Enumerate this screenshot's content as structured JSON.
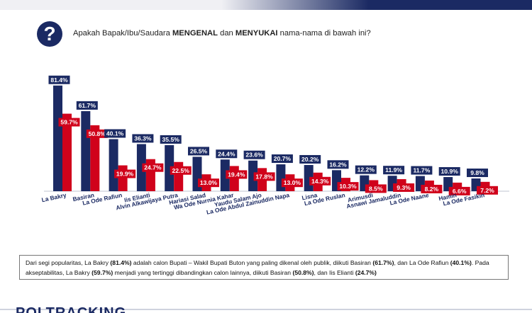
{
  "question": {
    "icon": "question-mark-icon",
    "mark": "?",
    "text_before": "Apakah Bapak/Ibu/Saudara ",
    "bold1": "MENGENAL",
    "text_mid": " dan ",
    "bold2": "MENYUKAI",
    "text_after": " nama-nama di bawah ini?"
  },
  "chart_data": {
    "type": "bar",
    "categories": [
      "La Bakry",
      "Basiran",
      "La Ode Rafiun",
      "Iis Elianti",
      "Alvin Alkawijaya Putra",
      "Hariasi Salad",
      "Wa Ode Nurnia Kahar",
      "Yaudu Salam Ajo",
      "La Ode Abdul Zainuddin Napa",
      "Lisna",
      "La Ode Ruslan",
      "Arimusdi",
      "Asnawi Jamaluddin",
      "La Ode Naane",
      "Hamin",
      "La Ode Fasikin"
    ],
    "series": [
      {
        "color": "#1b2a63",
        "values": [
          81.4,
          61.7,
          40.1,
          36.3,
          35.5,
          26.5,
          24.4,
          23.6,
          20.7,
          20.2,
          16.2,
          12.2,
          11.9,
          11.7,
          10.9,
          9.8
        ],
        "labels": [
          "81.4%",
          "61.7%",
          "40.1%",
          "36.3%",
          "35.5%",
          "26.5%",
          "24.4%",
          "23.6%",
          "20.7%",
          "20.2%",
          "16.2%",
          "12.2%",
          "11.9%",
          "11.7%",
          "10.9%",
          "9.8%"
        ]
      },
      {
        "color": "#d0021b",
        "values": [
          59.7,
          50.8,
          19.9,
          24.7,
          22.5,
          13.0,
          19.4,
          17.8,
          13.0,
          14.3,
          10.3,
          8.5,
          9.3,
          8.2,
          6.6,
          7.2
        ],
        "labels": [
          "59.7%",
          "50.8%",
          "19.9%",
          "24.7%",
          "22.5%",
          "13.0%",
          "19.4%",
          "17.8%",
          "13.0%",
          "14.3%",
          "10.3%",
          "8.5%",
          "9.3%",
          "8.2%",
          "6.6%",
          "7.2%"
        ]
      }
    ],
    "ylim": [
      0,
      90
    ],
    "grid": false
  },
  "note": {
    "p1": "Dari segi popularitas, La Bakry ",
    "b1": "(81.4%)",
    "p2": " adalah calon Bupati – Wakil Bupati Buton yang paling dikenal oleh publik, diikuti Basiran ",
    "b2": "(61.7%)",
    "p3": ", dan La Ode Rafiun ",
    "b3": "(40.1%)",
    "p4": ". Pada akseptabilitas, La Bakry ",
    "b4": "(59.7%)",
    "p5": " menjadi yang tertinggi dibandingkan calon lainnya, diikuti Basiran ",
    "b5": "(50.8%)",
    "p6": ", dan Iis Elianti ",
    "b6": "(24.7%)"
  },
  "brand": "POLTRACKING"
}
